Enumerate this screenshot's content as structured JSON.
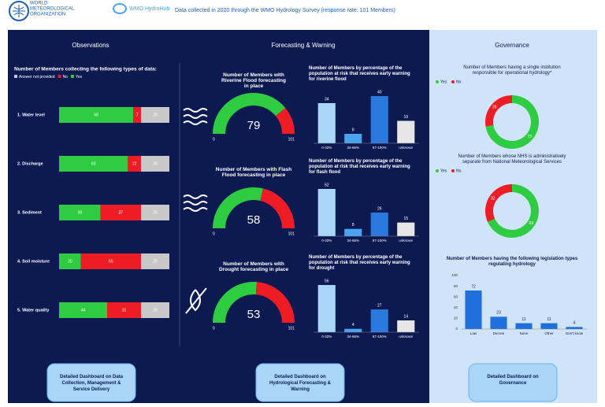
{
  "header": {
    "org": [
      "WORLD",
      "METEOROLOGICAL",
      "ORGANIZATION"
    ],
    "hub": "WMO HydroHub",
    "note": "Data collected in 2020 through the WMO Hydrology Survey (response rate: 101 Members)"
  },
  "sections": [
    "Observations",
    "Forecasting & Warning",
    "Governance"
  ],
  "buttons": [
    "Detailed Dashboard on Data Collection, Management & Service Delivery",
    "Detailed Dashboard on Hydrological Forecasting & Warning",
    "Detailed Dashboard on Governance"
  ],
  "chart_data": [
    {
      "type": "stacked_hbar",
      "title": "Number of Members collecting the following types of data:",
      "categories": [
        "1. Water level",
        "2. Discharge",
        "3. Sediment",
        "4. Soil moisture",
        "5. Water quality"
      ],
      "series": [
        {
          "name": "Answer not provided",
          "color": "#c8c8c8",
          "values": [
            26,
            26,
            26,
            26,
            26
          ]
        },
        {
          "name": "No",
          "color": "#ee1c25",
          "values": [
            7,
            12,
            37,
            55,
            31
          ]
        },
        {
          "name": "Yes",
          "color": "#2ecc40",
          "values": [
            68,
            63,
            38,
            20,
            44
          ]
        }
      ]
    },
    {
      "type": "gauge",
      "title": "Number of Members with Riverine Flood forecasting in place",
      "value": 79,
      "lim": [
        0,
        101
      ],
      "color": "#2ecc40",
      "rest_color": "#ee1c25"
    },
    {
      "type": "gauge",
      "title": "Number of Members with Flash Flood forecasting in place",
      "value": 58,
      "lim": [
        0,
        101
      ],
      "color": "#2ecc40",
      "rest_color": "#ee1c25"
    },
    {
      "type": "gauge",
      "title": "Number of Members with Drought forecasting in place",
      "value": 53,
      "lim": [
        0,
        101
      ],
      "color": "#2ecc40",
      "rest_color": "#ee1c25"
    },
    {
      "type": "bar",
      "title": "Number of Members by percentage of the population at risk that receives early warning for riverine flood",
      "categories": [
        "0-33%",
        "34-66%",
        "67-100%",
        "unknown"
      ],
      "values": [
        34,
        8,
        40,
        19
      ],
      "colors": [
        "#a9d6f7",
        "#4aa3ee",
        "#2a79de",
        "#e6e6e6"
      ]
    },
    {
      "type": "bar",
      "title": "Number of Members by percentage of the population at risk that receives early warning for flash flood",
      "categories": [
        "0-33%",
        "34-66%",
        "67-100%",
        "unknown"
      ],
      "values": [
        52,
        8,
        26,
        15
      ],
      "colors": [
        "#a9d6f7",
        "#4aa3ee",
        "#2a79de",
        "#e6e6e6"
      ]
    },
    {
      "type": "bar",
      "title": "Number of Members by percentage of the population at risk that receives early warning for drought",
      "categories": [
        "0-33%",
        "34-66%",
        "67-100%",
        "unknown"
      ],
      "values": [
        56,
        4,
        27,
        14
      ],
      "colors": [
        "#a9d6f7",
        "#4aa3ee",
        "#2a79de",
        "#e6e6e6"
      ]
    },
    {
      "type": "donut",
      "title": "Number of Members having a single institution responsible for operational hydrology*",
      "categories": [
        "Yes",
        "No"
      ],
      "values": [
        73,
        28
      ],
      "colors": [
        "#2ecc40",
        "#ee1c25"
      ]
    },
    {
      "type": "donut",
      "title": "Number of Members whose NHS is administratively separate from National Meteorological Services",
      "categories": [
        "Yes",
        "No"
      ],
      "values": [
        69,
        32
      ],
      "colors": [
        "#2ecc40",
        "#ee1c25"
      ]
    },
    {
      "type": "bar",
      "title": "Number of Members having the following legislation types regulating hydrology",
      "categories": [
        "Law",
        "Decree",
        "None",
        "Other",
        "Don't know"
      ],
      "values": [
        72,
        23,
        11,
        11,
        4
      ],
      "color": "#1f6fde",
      "ylim": [
        0,
        100
      ],
      "yticks": [
        0,
        20,
        40,
        60,
        80,
        100
      ]
    }
  ]
}
